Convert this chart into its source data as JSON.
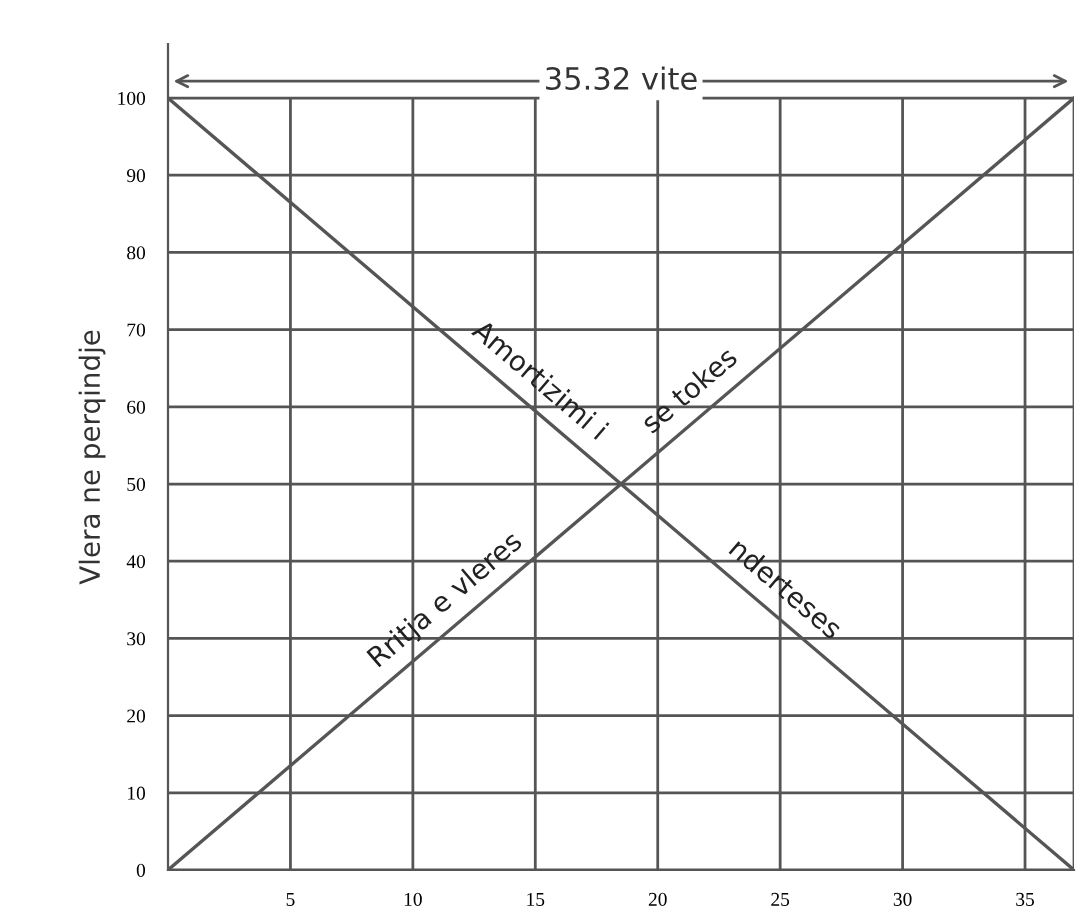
{
  "chart_data": {
    "type": "line",
    "ylabel": "Vlera ne perqindje",
    "x": [
      0,
      37
    ],
    "series": [
      {
        "color": "#555555",
        "values": [
          100,
          0
        ]
      },
      {
        "color": "#555555",
        "values": [
          0,
          100
        ]
      }
    ],
    "xlim": [
      0,
      37
    ],
    "ylim": [
      0,
      107
    ],
    "xticks": [
      5,
      10,
      15,
      20,
      25,
      30,
      35
    ],
    "yticks": [
      0,
      10,
      20,
      30,
      40,
      50,
      60,
      70,
      80,
      90,
      100
    ],
    "grid": true,
    "legend": false,
    "marker": "none",
    "line_style": "solid",
    "annotations": [
      "35.32 vite",
      {
        "text": "Amortizimi i",
        "x": 14.5,
        "y": 60.8
      },
      {
        "text": "se tokes",
        "x": 22.0,
        "y": 59.5
      },
      {
        "text": "nderteses",
        "x": 24.5,
        "y": 33.8
      },
      {
        "text": "Rritja e vleres",
        "x": 12.0,
        "y": 32.4
      }
    ]
  }
}
